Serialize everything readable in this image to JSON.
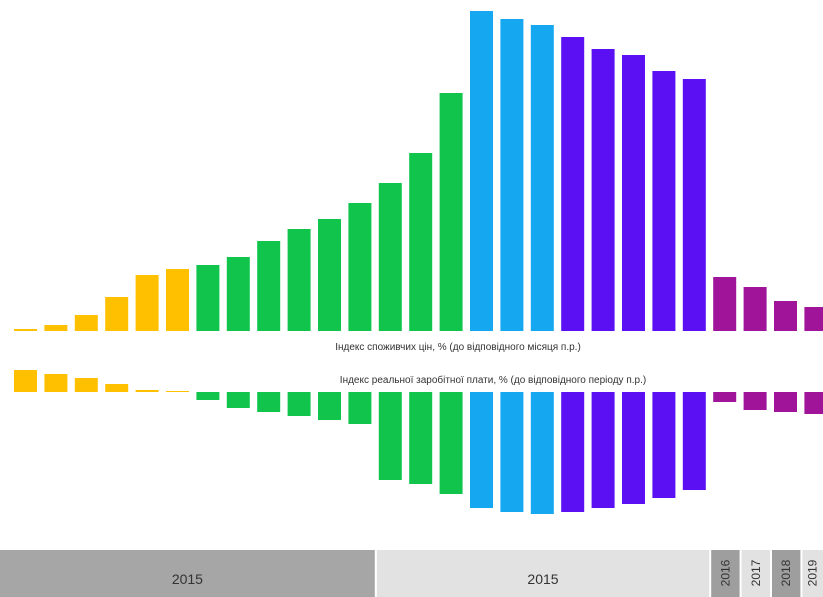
{
  "colors": {
    "yellow": "#FFC000",
    "green": "#10C44C",
    "blue": "#15A8F0",
    "violet": "#5A10F2",
    "magenta": "#A0149A",
    "band_dark": "#A6A6A6",
    "band_light": "#E2E2E2",
    "band_year_dark": "#9E9E9E",
    "band_year_light": "#E2E2E2"
  },
  "chart_data": {
    "type": "bar",
    "series": [
      {
        "name": "Індекс споживчих цін, % (до відповідного місяця п.р.)",
        "values": [
          1,
          3,
          8,
          17,
          28,
          31,
          33,
          37,
          45,
          51,
          56,
          64,
          74,
          89,
          119,
          160,
          156,
          153,
          147,
          141,
          138,
          130,
          126,
          27,
          22,
          15,
          12
        ],
        "colors": [
          "yellow",
          "yellow",
          "yellow",
          "yellow",
          "yellow",
          "yellow",
          "green",
          "green",
          "green",
          "green",
          "green",
          "green",
          "green",
          "green",
          "green",
          "blue",
          "blue",
          "blue",
          "violet",
          "violet",
          "violet",
          "violet",
          "violet",
          "magenta",
          "magenta",
          "magenta",
          "magenta"
        ]
      },
      {
        "name": "Індекс реальної заробітної плати, % (до відповідного періоду п.р.)",
        "values": [
          11,
          9,
          7,
          4,
          1,
          0.5,
          -4,
          -8,
          -10,
          -12,
          -14,
          -16,
          -44,
          -46,
          -51,
          -58,
          -60,
          -61,
          -60,
          -58,
          -56,
          -53,
          -49,
          -5,
          -9,
          -10,
          -11
        ],
        "colors": [
          "yellow",
          "yellow",
          "yellow",
          "yellow",
          "yellow",
          "yellow",
          "green",
          "green",
          "green",
          "green",
          "green",
          "green",
          "green",
          "green",
          "green",
          "blue",
          "blue",
          "blue",
          "violet",
          "violet",
          "violet",
          "violet",
          "violet",
          "magenta",
          "magenta",
          "magenta",
          "magenta"
        ]
      }
    ],
    "periods": [
      {
        "label": "2015",
        "from": 0,
        "to": 11,
        "shade": "band_dark"
      },
      {
        "label": "2015",
        "from": 12,
        "to": 22,
        "shade": "band_light"
      },
      {
        "label": "2016",
        "from": 23,
        "to": 23,
        "shade": "band_year_dark"
      },
      {
        "label": "2017",
        "from": 24,
        "to": 24,
        "shade": "band_year_light"
      },
      {
        "label": "2018",
        "from": 25,
        "to": 25,
        "shade": "band_year_dark"
      },
      {
        "label": "2019",
        "from": 26,
        "to": 26,
        "shade": "band_year_light"
      }
    ]
  }
}
